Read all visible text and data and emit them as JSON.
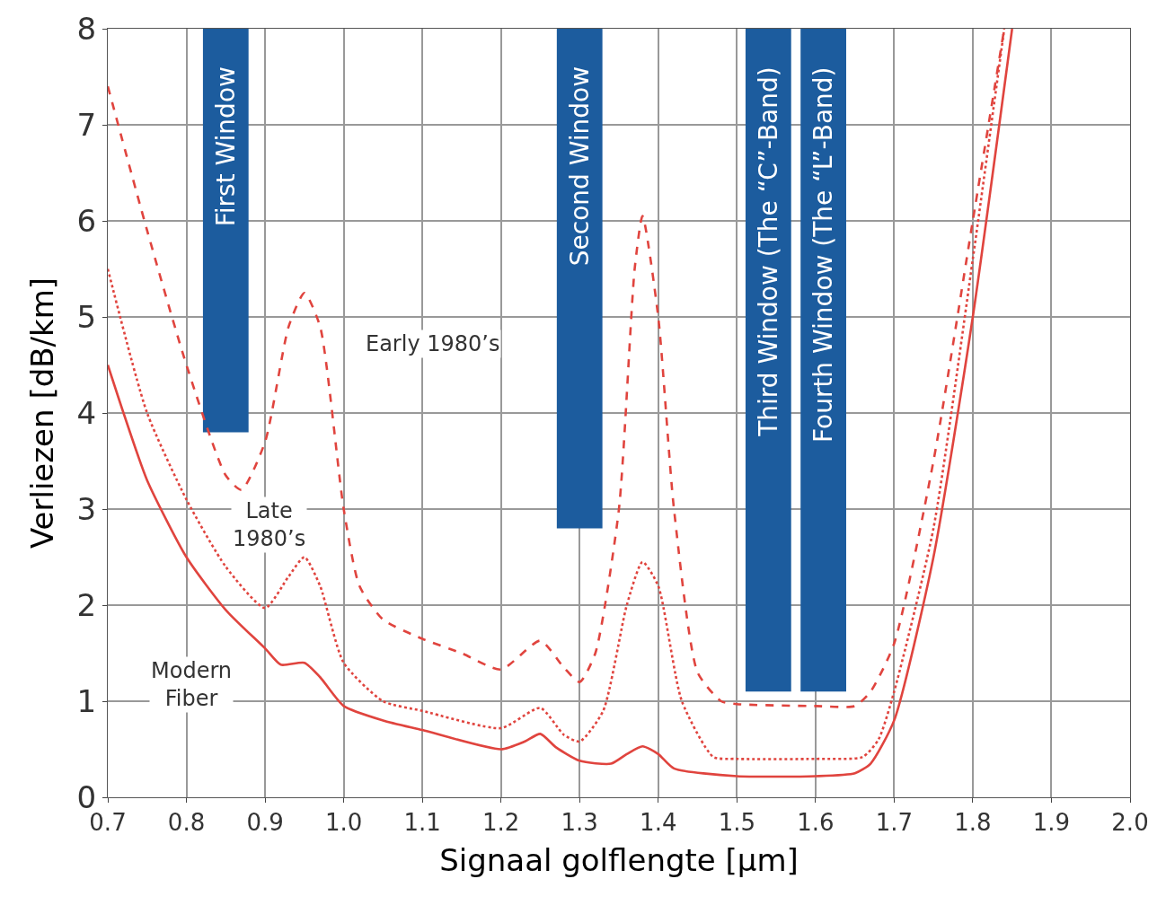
{
  "chart_data": {
    "type": "line",
    "xlabel": "Signaal golflengte [μm]",
    "ylabel": "Verliezen [dB/km]",
    "xlim": [
      0.7,
      2.0
    ],
    "xticks": [
      0.7,
      0.8,
      0.9,
      {
        "value": 1.0,
        "label": "1.0"
      },
      1.1,
      1.2,
      1.3,
      1.4,
      1.5,
      1.6,
      1.7,
      1.8,
      1.9,
      {
        "value": 2.0,
        "label": "2.0"
      }
    ],
    "ylim": [
      0,
      8
    ],
    "yticks": [
      0,
      1,
      2,
      3,
      4,
      5,
      6,
      7,
      8
    ],
    "grid": true,
    "series": [
      {
        "type": "bar",
        "color": "#1c5c9e",
        "x": [
          0.85,
          1.3,
          1.54,
          1.61
        ],
        "base": [
          3.8,
          2.8,
          1.1,
          1.1
        ],
        "values": [
          4.2,
          5.2,
          6.9,
          6.9
        ]
      },
      {
        "line_style": "dashed",
        "color": "#e0443e",
        "x": [
          0.7,
          0.75,
          0.8,
          0.85,
          0.87,
          0.9,
          0.93,
          0.95,
          0.97,
          1.0,
          1.02,
          1.05,
          1.1,
          1.15,
          1.2,
          1.25,
          1.28,
          1.3,
          1.32,
          1.35,
          1.37,
          1.38,
          1.4,
          1.42,
          1.45,
          1.48,
          1.5,
          1.6,
          1.65,
          1.67,
          1.7,
          1.75,
          1.8,
          1.84
        ],
        "values": [
          7.4,
          5.9,
          4.5,
          3.35,
          3.2,
          3.7,
          4.9,
          5.25,
          4.9,
          3.0,
          2.2,
          1.85,
          1.65,
          1.5,
          1.33,
          1.63,
          1.35,
          1.2,
          1.5,
          3.0,
          5.5,
          6.05,
          5.0,
          3.0,
          1.3,
          1.0,
          0.97,
          0.95,
          0.95,
          1.1,
          1.6,
          3.5,
          6.0,
          8.0
        ]
      },
      {
        "line_style": "dotted",
        "color": "#e0443e",
        "x": [
          0.7,
          0.75,
          0.8,
          0.85,
          0.9,
          0.93,
          0.95,
          0.97,
          1.0,
          1.05,
          1.1,
          1.2,
          1.25,
          1.28,
          1.3,
          1.33,
          1.36,
          1.38,
          1.4,
          1.43,
          1.47,
          1.5,
          1.6,
          1.66,
          1.68,
          1.7,
          1.75,
          1.8,
          1.84
        ],
        "values": [
          5.5,
          4.0,
          3.1,
          2.4,
          1.97,
          2.3,
          2.5,
          2.2,
          1.4,
          1.0,
          0.9,
          0.72,
          0.93,
          0.65,
          0.58,
          0.9,
          2.0,
          2.45,
          2.2,
          1.0,
          0.42,
          0.4,
          0.4,
          0.42,
          0.6,
          1.1,
          2.8,
          5.6,
          8.0
        ]
      },
      {
        "line_style": "solid",
        "color": "#e0443e",
        "x": [
          0.7,
          0.72,
          0.75,
          0.8,
          0.85,
          0.9,
          0.92,
          0.95,
          0.97,
          1.0,
          1.05,
          1.1,
          1.2,
          1.23,
          1.25,
          1.27,
          1.3,
          1.34,
          1.36,
          1.38,
          1.4,
          1.42,
          1.5,
          1.6,
          1.65,
          1.67,
          1.7,
          1.75,
          1.8,
          1.85
        ],
        "values": [
          4.5,
          4.0,
          3.3,
          2.5,
          1.95,
          1.55,
          1.38,
          1.4,
          1.25,
          0.95,
          0.8,
          0.7,
          0.5,
          0.58,
          0.66,
          0.52,
          0.38,
          0.35,
          0.45,
          0.53,
          0.45,
          0.3,
          0.22,
          0.22,
          0.25,
          0.35,
          0.8,
          2.5,
          5.0,
          8.0
        ]
      }
    ],
    "annotations": [
      "First Window",
      "Second Window",
      "Third Window (The “C”-Band)",
      "Fourth Window (The “L”-Band)",
      "Early 1980’s",
      "Late\n1980’s",
      "Modern\nFiber"
    ]
  }
}
